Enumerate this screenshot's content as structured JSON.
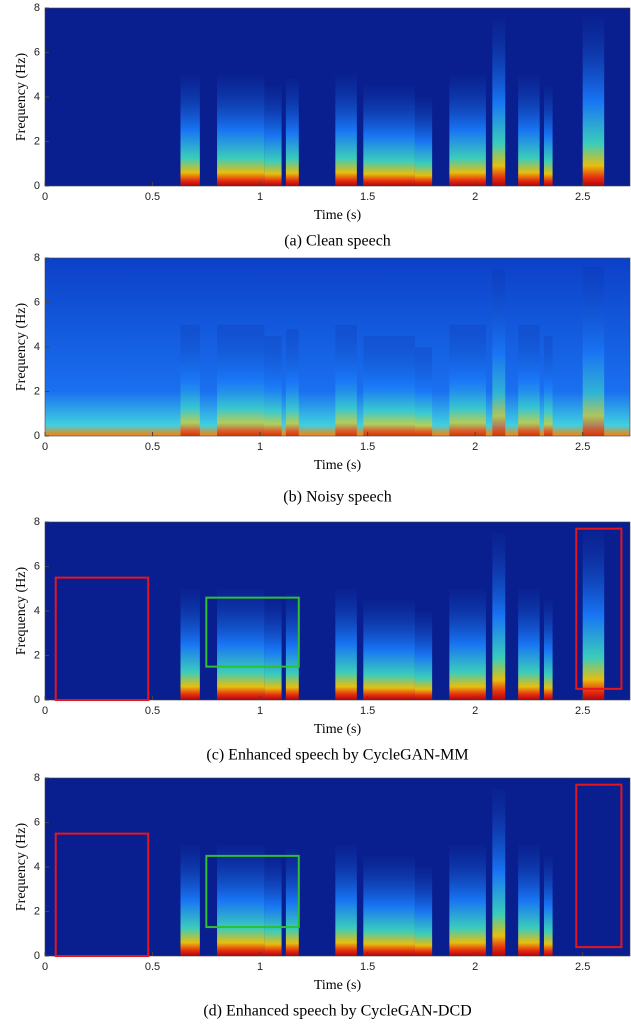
{
  "chart_data": [
    {
      "type": "spectrogram",
      "caption": "(a) Clean speech",
      "xlabel": "Time (s)",
      "ylabel": "Frequency (Hz)",
      "xlim": [
        0,
        2.72
      ],
      "ylim": [
        0,
        8
      ],
      "xticks": [
        0,
        0.5,
        1,
        1.5,
        2,
        2.5
      ],
      "yticks": [
        0,
        2,
        4,
        6,
        8
      ],
      "noisy": false
    },
    {
      "type": "spectrogram",
      "caption": "(b) Noisy speech",
      "xlabel": "Time (s)",
      "ylabel": "Frequency (Hz)",
      "xlim": [
        0,
        2.72
      ],
      "ylim": [
        0,
        8
      ],
      "xticks": [
        0,
        0.5,
        1,
        1.5,
        2,
        2.5
      ],
      "yticks": [
        0,
        2,
        4,
        6,
        8
      ],
      "noisy": true
    },
    {
      "type": "spectrogram",
      "caption": "(c) Enhanced speech by CycleGAN-MM",
      "xlabel": "Time (s)",
      "ylabel": "Frequency (Hz)",
      "xlim": [
        0,
        2.72
      ],
      "ylim": [
        0,
        8
      ],
      "xticks": [
        0,
        0.5,
        1,
        1.5,
        2,
        2.5
      ],
      "yticks": [
        0,
        2,
        4,
        6,
        8
      ],
      "noisy": false,
      "boxes": [
        {
          "color": "#e8141c",
          "x": [
            0.05,
            0.48
          ],
          "y": [
            0,
            5.5
          ]
        },
        {
          "color": "#2ec02e",
          "x": [
            0.75,
            1.18
          ],
          "y": [
            1.5,
            4.6
          ]
        },
        {
          "color": "#e8141c",
          "x": [
            2.47,
            2.68
          ],
          "y": [
            0.5,
            7.7
          ]
        }
      ]
    },
    {
      "type": "spectrogram",
      "caption": "(d) Enhanced speech by CycleGAN-DCD",
      "xlabel": "Time (s)",
      "ylabel": "Frequency (Hz)",
      "xlim": [
        0,
        2.72
      ],
      "ylim": [
        0,
        8
      ],
      "xticks": [
        0,
        0.5,
        1,
        1.5,
        2,
        2.5
      ],
      "yticks": [
        0,
        2,
        4,
        6,
        8
      ],
      "noisy": false,
      "boxes": [
        {
          "color": "#e8141c",
          "x": [
            0.05,
            0.48
          ],
          "y": [
            0,
            5.5
          ]
        },
        {
          "color": "#2ec02e",
          "x": [
            0.75,
            1.18
          ],
          "y": [
            1.3,
            4.5
          ]
        },
        {
          "color": "#e8141c",
          "x": [
            2.47,
            2.68
          ],
          "y": [
            0.4,
            7.7
          ]
        }
      ]
    }
  ]
}
